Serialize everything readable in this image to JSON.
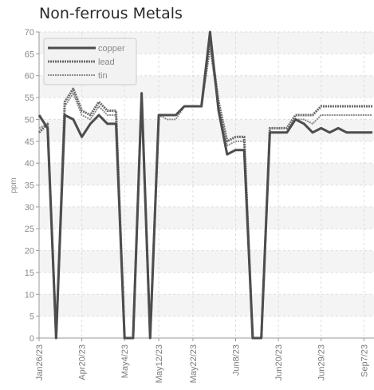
{
  "chart_data": {
    "type": "line",
    "title": "Non-ferrous Metals",
    "xlabel": "",
    "ylabel": "ppm",
    "ylim": [
      0,
      70
    ],
    "yticks": [
      0,
      5,
      10,
      15,
      20,
      25,
      30,
      35,
      40,
      45,
      50,
      55,
      60,
      65,
      70
    ],
    "xtick_labels": [
      "Jan26/23",
      "Apr20/23",
      "May4/23",
      "May12/23",
      "May22/23",
      "Jun8/23",
      "Jun20/23",
      "Jun29/23",
      "Sep7/23"
    ],
    "grid": true,
    "legend_position": "top-left",
    "x": [
      0,
      1,
      2,
      3,
      4,
      5,
      6,
      7,
      8,
      9,
      10,
      11,
      12,
      13,
      14,
      15,
      16,
      17,
      18,
      19,
      20,
      21,
      22,
      23,
      24,
      25,
      26,
      27,
      28,
      29,
      30,
      31,
      32,
      33,
      34,
      35,
      36,
      37,
      38,
      39
    ],
    "series": [
      {
        "name": "copper",
        "color": "#4d4d4d",
        "values": [
          51,
          48,
          0,
          51,
          50,
          46,
          49,
          51,
          49,
          49,
          0,
          0,
          56,
          0,
          51,
          51,
          51,
          53,
          53,
          53,
          70,
          52,
          42,
          43,
          43,
          0,
          0,
          47,
          47,
          47,
          50,
          49,
          47,
          48,
          47,
          48,
          47,
          47,
          47,
          47
        ]
      },
      {
        "name": "lead",
        "color": "#6a6a6a",
        "values": [
          47,
          49,
          0,
          54,
          57,
          52,
          51,
          54,
          52,
          52,
          0,
          0,
          55,
          0,
          51,
          51,
          51,
          53,
          53,
          53,
          68,
          54,
          45,
          46,
          46,
          0,
          0,
          48,
          48,
          48,
          51,
          51,
          51,
          53,
          53,
          53,
          53,
          53,
          53,
          53
        ]
      },
      {
        "name": "tin",
        "color": "#8c8c8c",
        "values": [
          48,
          49,
          0,
          53,
          56,
          51,
          50,
          53,
          51,
          51,
          0,
          0,
          55,
          0,
          51,
          50,
          50,
          53,
          53,
          53,
          66,
          53,
          44,
          45,
          45,
          0,
          0,
          47,
          47,
          47,
          50,
          50,
          49,
          51,
          51,
          51,
          51,
          51,
          51,
          51
        ]
      }
    ]
  }
}
